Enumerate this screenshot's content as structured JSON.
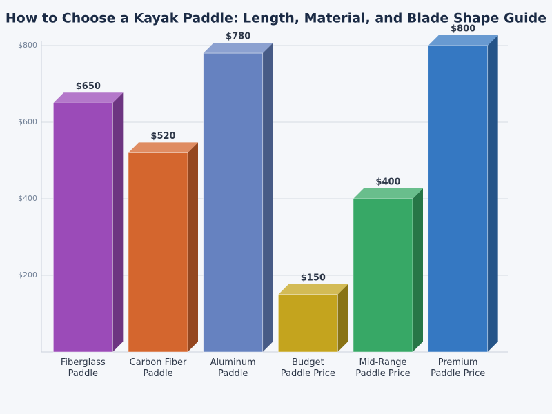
{
  "chart_data": {
    "type": "bar3d",
    "title": "How to Choose a Kayak Paddle: Length, Material, and Blade Shape Guide",
    "categories": [
      "Fiberglass Paddle",
      "Carbon Fiber Paddle",
      "Aluminum Paddle",
      "Budget Paddle Price",
      "Mid-Range Paddle Price",
      "Premium Paddle Price"
    ],
    "values": [
      650,
      520,
      780,
      150,
      400,
      800
    ],
    "value_labels": [
      "$650",
      "$520",
      "$780",
      "$150",
      "$400",
      "$800"
    ],
    "colors": [
      "#9b4bb8",
      "#d4662e",
      "#6682c0",
      "#c4a41e",
      "#37a866",
      "#3578c2"
    ],
    "ylim": [
      0,
      800
    ],
    "yticks": [
      {
        "value": 200,
        "label": "$200"
      },
      {
        "value": 400,
        "label": "$400"
      },
      {
        "value": 600,
        "label": "$600"
      },
      {
        "value": 800,
        "label": "$800"
      }
    ],
    "grid": true
  }
}
